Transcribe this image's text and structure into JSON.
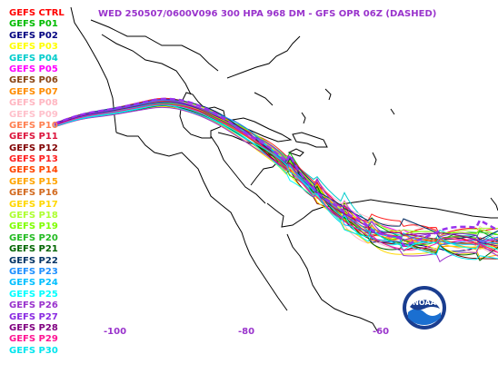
{
  "title": "WED 250507/0600V096  300 HPA 968 DM - GFS OPR 06Z (DASHED)",
  "legend": [
    {
      "label": "GEFS CTRL",
      "color": "#ff0000"
    },
    {
      "label": "GEFS P01",
      "color": "#00bb00"
    },
    {
      "label": "GEFS P02",
      "color": "#000080"
    },
    {
      "label": "GEFS P03",
      "color": "#ffff00"
    },
    {
      "label": "GEFS P04",
      "color": "#00cccc"
    },
    {
      "label": "GEFS P05",
      "color": "#ff00ff"
    },
    {
      "label": "GEFS P06",
      "color": "#8b4513"
    },
    {
      "label": "GEFS P07",
      "color": "#ff8c00"
    },
    {
      "label": "GEFS P08",
      "color": "#ffb6c1"
    },
    {
      "label": "GEFS P09",
      "color": "#ffc0cb"
    },
    {
      "label": "GEFS P10",
      "color": "#ff7f50"
    },
    {
      "label": "GEFS P11",
      "color": "#dc143c"
    },
    {
      "label": "GEFS P12",
      "color": "#800000"
    },
    {
      "label": "GEFS P13",
      "color": "#ff2020"
    },
    {
      "label": "GEFS P14",
      "color": "#ff4500"
    },
    {
      "label": "GEFS P15",
      "color": "#ffa500"
    },
    {
      "label": "GEFS P16",
      "color": "#d2691e"
    },
    {
      "label": "GEFS P17",
      "color": "#ffd700"
    },
    {
      "label": "GEFS P18",
      "color": "#adff2f"
    },
    {
      "label": "GEFS P19",
      "color": "#7fff00"
    },
    {
      "label": "GEFS P20",
      "color": "#22bb22"
    },
    {
      "label": "GEFS P21",
      "color": "#006400"
    },
    {
      "label": "GEFS P22",
      "color": "#003366"
    },
    {
      "label": "GEFS P23",
      "color": "#1e90ff"
    },
    {
      "label": "GEFS P24",
      "color": "#00bfff"
    },
    {
      "label": "GEFS P25",
      "color": "#00ffff"
    },
    {
      "label": "GEFS P26",
      "color": "#9932cc"
    },
    {
      "label": "GEFS P27",
      "color": "#8a2be2"
    },
    {
      "label": "GEFS P28",
      "color": "#800080"
    },
    {
      "label": "GEFS P29",
      "color": "#ff1493"
    },
    {
      "label": "GEFS P30",
      "color": "#00e5ee"
    }
  ],
  "lon_ticks": [
    {
      "label": "-100",
      "value": -100
    },
    {
      "label": "-80",
      "value": -80
    },
    {
      "label": "-60",
      "value": -60
    }
  ],
  "colors": {
    "title": "#9933cc",
    "ticks": "#9933cc",
    "coastline": "#000000",
    "opr_dashed": "#9933ee",
    "background": "#ffffff"
  },
  "logo": {
    "text": "NOAA",
    "icon": "noaa-logo-icon"
  }
}
